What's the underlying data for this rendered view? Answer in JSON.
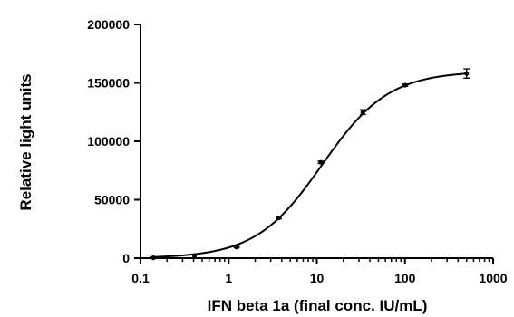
{
  "chart_data": {
    "type": "scatter",
    "xscale": "log",
    "xlabel": "IFN beta 1a (final conc. IU/mL)",
    "ylabel": "Relative light units",
    "xlim": [
      0.1,
      1000
    ],
    "ylim": [
      0,
      200000
    ],
    "x_ticks": [
      0.1,
      1,
      10,
      100,
      1000
    ],
    "x_tick_labels": [
      "0.1",
      "1",
      "10",
      "100",
      "1000"
    ],
    "y_ticks": [
      0,
      50000,
      100000,
      150000,
      200000
    ],
    "y_tick_labels": [
      "0",
      "50000",
      "100000",
      "150000",
      "200000"
    ],
    "grid": false,
    "series": [
      {
        "points": [
          {
            "x": 0.14,
            "y": 300,
            "err": 0
          },
          {
            "x": 0.41,
            "y": 2000,
            "err": 0
          },
          {
            "x": 1.23,
            "y": 9500,
            "err": 600
          },
          {
            "x": 3.7,
            "y": 34500,
            "err": 800
          },
          {
            "x": 11.1,
            "y": 82000,
            "err": 1000
          },
          {
            "x": 33.3,
            "y": 125000,
            "err": 2000
          },
          {
            "x": 100,
            "y": 148000,
            "err": 1000
          },
          {
            "x": 500,
            "y": 158000,
            "err": 4000
          }
        ],
        "fit": {
          "model": "4PL",
          "bottom": 0,
          "top": 160000,
          "ec50": 11.5,
          "hill": 1.15
        }
      }
    ],
    "colors": {
      "line": "#000000",
      "points": "#000000"
    }
  }
}
